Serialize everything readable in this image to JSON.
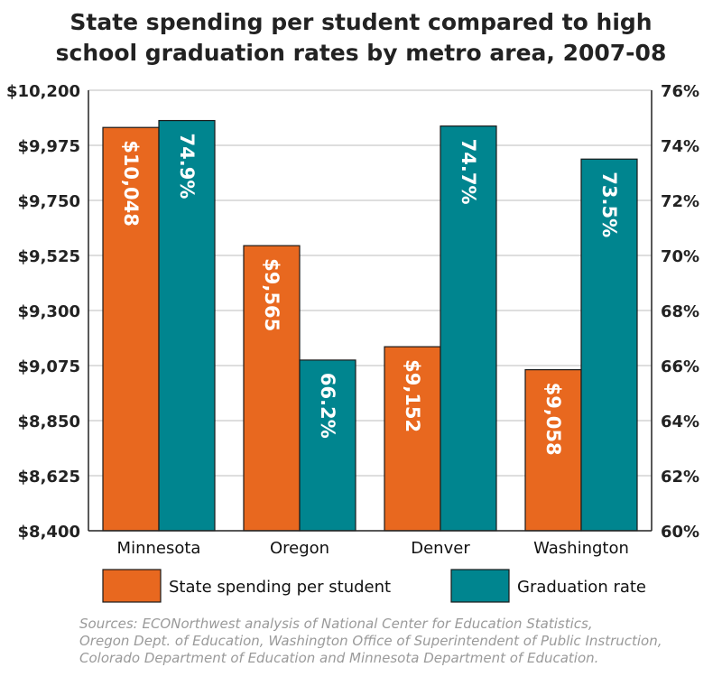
{
  "chart_data": {
    "type": "bar",
    "title": [
      "State spending per student compared to high",
      "school graduation rates by metro area, 2007-08"
    ],
    "categories": [
      "Minnesota",
      "Oregon",
      "Denver",
      "Washington"
    ],
    "series": [
      {
        "name": "State spending per student",
        "axis": "left",
        "color": "#e8681f",
        "values": [
          10048,
          9565,
          9152,
          9058
        ],
        "labels": [
          "$10,048",
          "$9,565",
          "$9,152",
          "$9,058"
        ]
      },
      {
        "name": "Graduation rate",
        "axis": "right",
        "color": "#00858f",
        "values": [
          74.9,
          66.2,
          74.7,
          73.5
        ],
        "labels": [
          "74.9%",
          "66.2%",
          "74.7%",
          "73.5%"
        ]
      }
    ],
    "y_left": {
      "ylim": [
        8400,
        10200
      ],
      "ticks": [
        "$8,400",
        "$8,625",
        "$8,850",
        "$9,075",
        "$9,300",
        "$9,525",
        "$9,750",
        "$9,975",
        "$10,200"
      ]
    },
    "y_right": {
      "ylim": [
        60,
        76
      ],
      "ticks": [
        "60%",
        "62%",
        "64%",
        "66%",
        "68%",
        "70%",
        "72%",
        "74%",
        "76%"
      ]
    },
    "grid": true,
    "legend_placement": "bottom",
    "source": [
      "Sources: ECONorthwest analysis of National Center for Education Statistics,",
      "Oregon Dept. of Education, Washington Office of Superintendent of Public Instruction,",
      "Colorado Department of Education and Minnesota Department of Education."
    ]
  }
}
